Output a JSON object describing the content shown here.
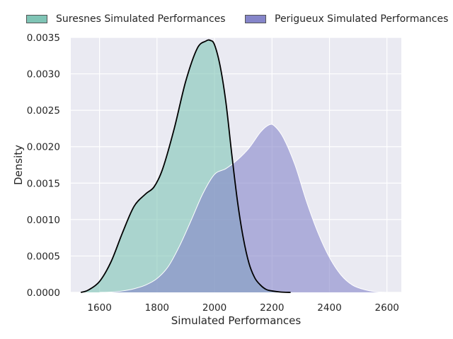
{
  "chart_data": {
    "type": "area",
    "xlabel": "Simulated Performances",
    "ylabel": "Density",
    "xlim": [
      1500,
      2650
    ],
    "ylim": [
      0,
      0.0035
    ],
    "xticks": [
      1600,
      1800,
      2000,
      2200,
      2400,
      2600
    ],
    "yticks": [
      "0.0000",
      "0.0005",
      "0.0010",
      "0.0015",
      "0.0020",
      "0.0025",
      "0.0030",
      "0.0035"
    ],
    "grid": true,
    "legend_position": "top",
    "background": "#eaeaf2",
    "series": [
      {
        "name": "Suresnes Simulated Performances",
        "fill": "#7fc4b5",
        "line": "#000000",
        "x": [
          1535,
          1560,
          1600,
          1640,
          1680,
          1720,
          1760,
          1790,
          1820,
          1860,
          1900,
          1940,
          1970,
          1985,
          2000,
          2020,
          2040,
          2060,
          2080,
          2100,
          2120,
          2140,
          2160,
          2180,
          2200,
          2230,
          2265
        ],
        "y": [
          0.0,
          3e-05,
          0.00015,
          0.00042,
          0.00082,
          0.00118,
          0.00135,
          0.00145,
          0.0017,
          0.00225,
          0.0029,
          0.00335,
          0.00345,
          0.00346,
          0.0034,
          0.0031,
          0.0026,
          0.0019,
          0.00125,
          0.00075,
          0.0004,
          0.0002,
          0.0001,
          4e-05,
          2e-05,
          5e-06,
          0.0
        ]
      },
      {
        "name": "Perigueux Simulated Performances",
        "fill": "#8585c9",
        "line": "#ffffff",
        "x": [
          1600,
          1640,
          1680,
          1720,
          1760,
          1800,
          1840,
          1880,
          1920,
          1960,
          2000,
          2040,
          2080,
          2120,
          2160,
          2190,
          2210,
          2240,
          2280,
          2320,
          2360,
          2400,
          2440,
          2480,
          2520,
          2560,
          2600
        ],
        "y": [
          0.0,
          5e-06,
          2e-05,
          5e-05,
          0.0001,
          0.00019,
          0.00036,
          0.00065,
          0.001,
          0.00136,
          0.00162,
          0.0017,
          0.00182,
          0.00198,
          0.0022,
          0.0023,
          0.00228,
          0.00212,
          0.00175,
          0.00125,
          0.00082,
          0.00048,
          0.00024,
          0.0001,
          4e-05,
          1e-05,
          0.0
        ]
      }
    ]
  }
}
